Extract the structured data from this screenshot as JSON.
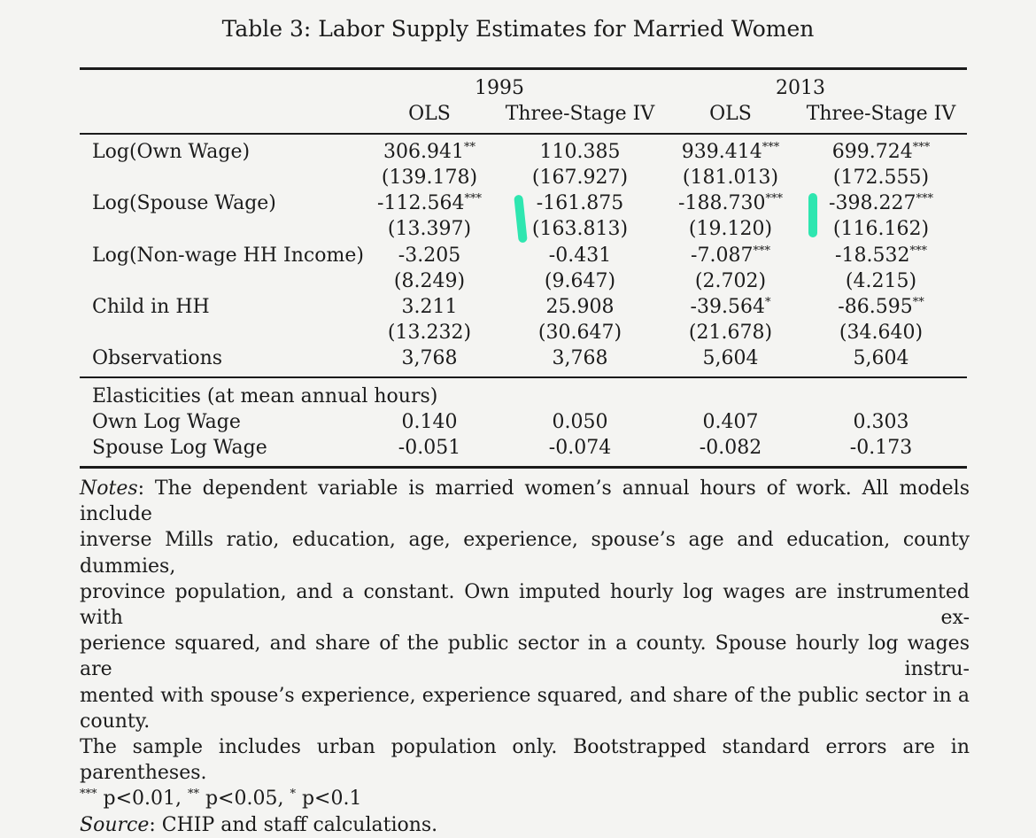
{
  "title": "Table 3: Labor Supply Estimates for Married Women",
  "header": {
    "groups": [
      "1995",
      "2013"
    ],
    "columns": [
      "OLS",
      "Three-Stage IV",
      "OLS",
      "Three-Stage IV"
    ]
  },
  "rows": [
    {
      "label": "Log(Own Wage)",
      "coef": [
        "306.941",
        "110.385",
        "939.414",
        "699.724"
      ],
      "stars": [
        "**",
        "",
        "***",
        "***"
      ],
      "se": [
        "(139.178)",
        "(167.927)",
        "(181.013)",
        "(172.555)"
      ]
    },
    {
      "label": "Log(Spouse Wage)",
      "coef": [
        "-112.564",
        "-161.875",
        "-188.730",
        "-398.227"
      ],
      "stars": [
        "***",
        "",
        "***",
        "***"
      ],
      "se": [
        "(13.397)",
        "(163.813)",
        "(19.120)",
        "(116.162)"
      ]
    },
    {
      "label": "Log(Non-wage HH Income)",
      "coef": [
        "-3.205",
        "-0.431",
        "-7.087",
        "-18.532"
      ],
      "stars": [
        "",
        "",
        "***",
        "***"
      ],
      "se": [
        "(8.249)",
        "(9.647)",
        "(2.702)",
        "(4.215)"
      ]
    },
    {
      "label": "Child in HH",
      "coef": [
        "3.211",
        "25.908",
        "-39.564",
        "-86.595"
      ],
      "stars": [
        "",
        "",
        "*",
        "**"
      ],
      "se": [
        "(13.232)",
        "(30.647)",
        "(21.678)",
        "(34.640)"
      ]
    }
  ],
  "observations": {
    "label": "Observations",
    "values": [
      "3,768",
      "3,768",
      "5,604",
      "5,604"
    ]
  },
  "elasticities": {
    "heading": "Elasticities (at mean annual hours)",
    "rows": [
      {
        "label": "Own Log Wage",
        "values": [
          "0.140",
          "0.050",
          "0.407",
          "0.303"
        ]
      },
      {
        "label": "Spouse Log Wage",
        "values": [
          "-0.051",
          "-0.074",
          "-0.082",
          "-0.173"
        ]
      }
    ]
  },
  "notes": {
    "notes_label": "Notes",
    "notes_lines": [
      ": The dependent variable is married women’s annual hours of work. All models include",
      "inverse Mills ratio, education, age, experience, spouse’s age and education, county dummies,",
      "province population, and a constant. Own imputed hourly log wages are instrumented with ex-",
      "perience squared, and share of the public sector in a county. Spouse hourly log wages are instru-",
      "mented with spouse’s experience, experience squared, and share of the public sector in a county.",
      "The sample includes urban population only. Bootstrapped standard errors are in parentheses."
    ],
    "significance": {
      "s1": "***",
      "t1": " p<0.01, ",
      "s2": "**",
      "t2": " p<0.05, ",
      "s3": "*",
      "t3": " p<0.1"
    },
    "source_label": "Source",
    "source_text": ": CHIP and staff calculations."
  },
  "highlight_color": "#2ee6b0"
}
